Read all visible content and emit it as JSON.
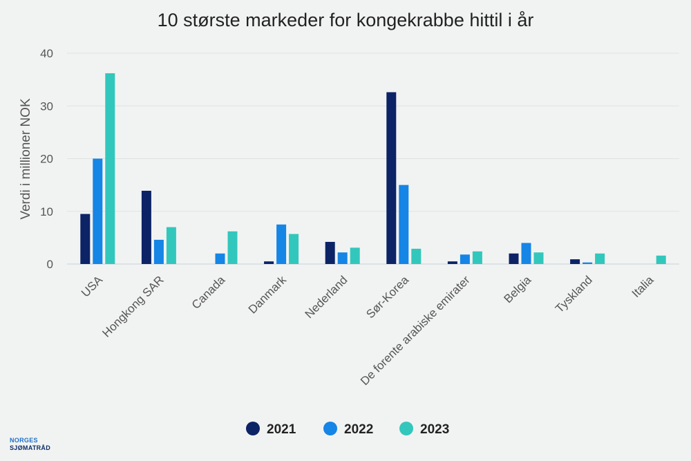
{
  "chart_data": {
    "type": "bar",
    "title": "10 største markeder for kongekrabbe hittil i år",
    "ylabel": "Verdi i millioner NOK",
    "xlabel": "",
    "ylim": [
      0,
      40
    ],
    "yticks": [
      0,
      10,
      20,
      30,
      40
    ],
    "grid": true,
    "legend_position": "bottom",
    "categories": [
      "USA",
      "Hongkong SAR",
      "Canada",
      "Danmark",
      "Nederland",
      "Sør-Korea",
      "De forente arabiske emirater",
      "Belgia",
      "Tyskland",
      "Italia"
    ],
    "series": [
      {
        "name": "2021",
        "color": "#0c2366",
        "values": [
          9.5,
          13.9,
          0,
          0.5,
          4.2,
          32.6,
          0.5,
          2.0,
          0.9,
          0
        ]
      },
      {
        "name": "2022",
        "color": "#1585e6",
        "values": [
          20.0,
          4.6,
          2.0,
          7.5,
          2.2,
          15.0,
          1.8,
          4.0,
          0.3,
          0
        ]
      },
      {
        "name": "2023",
        "color": "#32c7bc",
        "values": [
          36.2,
          7.0,
          6.2,
          5.7,
          3.1,
          2.9,
          2.4,
          2.2,
          2.0,
          1.6
        ]
      }
    ]
  },
  "colors": {
    "grid": "#dfe3e2",
    "axis": "#c8d0d8",
    "background": "#f1f3f2"
  },
  "logo": {
    "line1": "NORGES",
    "line2": "SJØMATRÅD"
  }
}
